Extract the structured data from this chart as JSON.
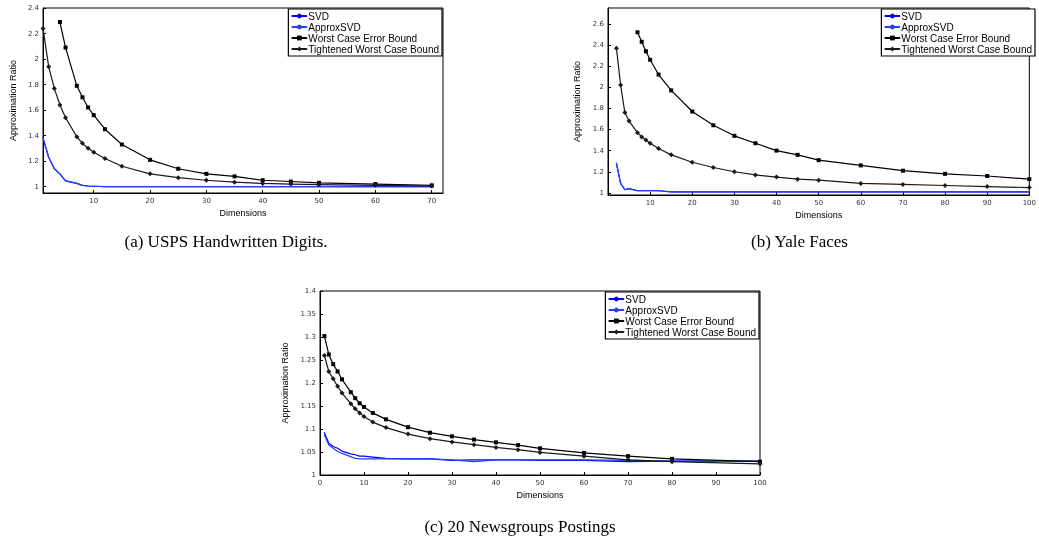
{
  "chart_data": [
    {
      "type": "line",
      "title": "(a) USPS Handwritten Digits.",
      "xlabel": "Dimensions",
      "ylabel": "Approximation Ratio",
      "xlim": [
        1,
        72
      ],
      "xticks": [
        10,
        20,
        30,
        40,
        50,
        60,
        70
      ],
      "ylim": [
        0.95,
        2.4
      ],
      "yticks": [
        1,
        1.2,
        1.4,
        1.6,
        1.8,
        2,
        2.2,
        2.4
      ],
      "legend": "top right",
      "grid": false,
      "series": [
        {
          "name": "SVD",
          "color": "#0000ff",
          "x": [
            1,
            2,
            3,
            4,
            5,
            7,
            8,
            9,
            10,
            12,
            15,
            20,
            25,
            30,
            35,
            40,
            45,
            50,
            60,
            70
          ],
          "values": [
            1.38,
            1.23,
            1.14,
            1.1,
            1.045,
            1.025,
            1.01,
            1.005,
            1.003,
            1.0,
            1.0,
            1.0,
            1.0,
            1.0,
            1.0,
            1.0,
            1.0,
            1.0,
            1.0,
            1.0
          ]
        },
        {
          "name": "ApproxSVD",
          "color": "#2040ff",
          "x": [
            1,
            2,
            3,
            4,
            5,
            7,
            8,
            9,
            10,
            12,
            15,
            20,
            25,
            30,
            35,
            40,
            45,
            50,
            60,
            70
          ],
          "values": [
            1.38,
            1.23,
            1.14,
            1.1,
            1.045,
            1.025,
            1.01,
            1.005,
            1.003,
            1.0,
            1.0,
            1.0,
            1.0,
            1.0,
            1.0,
            1.0,
            1.0,
            1.0,
            1.0,
            1.0
          ]
        },
        {
          "name": "Worst Case Error Bound",
          "color": "#000000",
          "marker": "square",
          "x": [
            4,
            5,
            7,
            8,
            9,
            10,
            12,
            15,
            20,
            25,
            30,
            35,
            40,
            45,
            50,
            60,
            70
          ],
          "values": [
            2.29,
            2.09,
            1.79,
            1.7,
            1.62,
            1.56,
            1.45,
            1.33,
            1.21,
            1.14,
            1.1,
            1.08,
            1.05,
            1.04,
            1.03,
            1.02,
            1.01
          ]
        },
        {
          "name": "Tightened Worst Case Bound",
          "color": "#1a1a1a",
          "marker": "diamond",
          "x": [
            1,
            2,
            3,
            4,
            5,
            7,
            8,
            9,
            10,
            12,
            15,
            20,
            25,
            30,
            35,
            40,
            45,
            50,
            60,
            70
          ],
          "values": [
            2.24,
            1.94,
            1.77,
            1.64,
            1.54,
            1.39,
            1.34,
            1.3,
            1.27,
            1.22,
            1.16,
            1.1,
            1.07,
            1.05,
            1.035,
            1.025,
            1.02,
            1.015,
            1.01,
            1.005
          ]
        }
      ]
    },
    {
      "type": "line",
      "title": "(b) Yale Faces",
      "xlabel": "Dimensions",
      "ylabel": "Approximation Ratio",
      "xlim": [
        0,
        100
      ],
      "xticks": [
        10,
        20,
        30,
        40,
        50,
        60,
        70,
        80,
        90,
        100
      ],
      "ylim": [
        0.98,
        2.75
      ],
      "yticks": [
        1,
        1.2,
        1.4,
        1.6,
        1.8,
        2,
        2.2,
        2.4,
        2.6
      ],
      "legend": "top right",
      "grid": false,
      "series": [
        {
          "name": "SVD",
          "color": "#0000ff",
          "x": [
            2,
            3,
            4,
            5,
            7,
            8,
            9,
            10,
            12,
            15,
            20,
            25,
            30,
            35,
            40,
            45,
            50,
            60,
            70,
            80,
            90,
            100
          ],
          "values": [
            1.28,
            1.09,
            1.03,
            1.04,
            1.02,
            1.02,
            1.02,
            1.02,
            1.02,
            1.01,
            1.01,
            1.01,
            1.01,
            1.01,
            1.01,
            1.01,
            1.01,
            1.01,
            1.01,
            1.01,
            1.01,
            1.01
          ]
        },
        {
          "name": "ApproxSVD",
          "color": "#2040ff",
          "x": [
            2,
            3,
            4,
            5,
            7,
            8,
            9,
            10,
            12,
            15,
            20,
            25,
            30,
            35,
            40,
            45,
            50,
            60,
            70,
            80,
            90,
            100
          ],
          "values": [
            1.28,
            1.09,
            1.03,
            1.04,
            1.02,
            1.02,
            1.02,
            1.02,
            1.02,
            1.01,
            1.01,
            1.01,
            1.01,
            1.01,
            1.01,
            1.01,
            1.01,
            1.01,
            1.01,
            1.01,
            1.01,
            1.01
          ]
        },
        {
          "name": "Worst Case Error Bound",
          "color": "#000000",
          "marker": "square",
          "x": [
            7,
            8,
            9,
            10,
            12,
            15,
            20,
            25,
            30,
            35,
            40,
            45,
            50,
            60,
            70,
            80,
            90,
            100
          ],
          "values": [
            2.52,
            2.43,
            2.34,
            2.26,
            2.12,
            1.97,
            1.77,
            1.64,
            1.54,
            1.47,
            1.4,
            1.36,
            1.31,
            1.26,
            1.21,
            1.18,
            1.16,
            1.13
          ]
        },
        {
          "name": "Tightened Worst Case Bound",
          "color": "#1a1a1a",
          "marker": "diamond",
          "x": [
            2,
            3,
            4,
            5,
            7,
            8,
            9,
            10,
            12,
            15,
            20,
            25,
            30,
            35,
            40,
            45,
            50,
            60,
            70,
            80,
            90,
            100
          ],
          "values": [
            2.37,
            2.02,
            1.76,
            1.68,
            1.57,
            1.53,
            1.5,
            1.47,
            1.42,
            1.36,
            1.29,
            1.24,
            1.2,
            1.17,
            1.15,
            1.13,
            1.12,
            1.09,
            1.08,
            1.07,
            1.06,
            1.05
          ]
        }
      ]
    },
    {
      "type": "line",
      "title": "(c) 20 Newsgroups Postings",
      "xlabel": "Dimensions",
      "ylabel": "Approximation Ratio",
      "xlim": [
        0,
        100
      ],
      "xticks": [
        0,
        10,
        20,
        30,
        40,
        50,
        60,
        70,
        80,
        90,
        100
      ],
      "ylim": [
        1,
        1.4
      ],
      "yticks": [
        1,
        1.05,
        1.1,
        1.15,
        1.2,
        1.25,
        1.3,
        1.35,
        1.4
      ],
      "legend": "top right",
      "grid": false,
      "series": [
        {
          "name": "SVD",
          "color": "#0000ff",
          "x": [
            1,
            2,
            3,
            4,
            5,
            7,
            8,
            9,
            10,
            12,
            15,
            20,
            25,
            30,
            35,
            40,
            45,
            50,
            60,
            70,
            80,
            100
          ],
          "values": [
            1.092,
            1.069,
            1.062,
            1.058,
            1.052,
            1.046,
            1.044,
            1.041,
            1.041,
            1.039,
            1.036,
            1.035,
            1.035,
            1.032,
            1.033,
            1.033,
            1.033,
            1.032,
            1.032,
            1.029,
            1.03,
            1.03
          ]
        },
        {
          "name": "ApproxSVD",
          "color": "#2040ff",
          "x": [
            1,
            2,
            3,
            4,
            5,
            7,
            8,
            9,
            10,
            12,
            15,
            20,
            25,
            30,
            35,
            40,
            45,
            50,
            60,
            70,
            80,
            100
          ],
          "values": [
            1.087,
            1.065,
            1.058,
            1.051,
            1.047,
            1.04,
            1.036,
            1.035,
            1.035,
            1.035,
            1.035,
            1.035,
            1.035,
            1.033,
            1.029,
            1.033,
            1.033,
            1.033,
            1.033,
            1.032,
            1.03,
            1.03
          ]
        },
        {
          "name": "Worst Case Error Bound",
          "color": "#000000",
          "marker": "square",
          "x": [
            1,
            2,
            3,
            4,
            5,
            7,
            8,
            9,
            10,
            12,
            15,
            20,
            25,
            30,
            35,
            40,
            45,
            50,
            60,
            70,
            80,
            100
          ],
          "values": [
            1.302,
            1.262,
            1.241,
            1.225,
            1.208,
            1.18,
            1.167,
            1.156,
            1.148,
            1.135,
            1.121,
            1.104,
            1.092,
            1.084,
            1.077,
            1.071,
            1.065,
            1.058,
            1.048,
            1.041,
            1.035,
            1.029
          ]
        },
        {
          "name": "Tightened Worst Case Bound",
          "color": "#1a1a1a",
          "marker": "diamond",
          "x": [
            1,
            2,
            3,
            4,
            5,
            7,
            8,
            9,
            10,
            12,
            15,
            20,
            25,
            30,
            35,
            40,
            45,
            50,
            60,
            70,
            80,
            100
          ],
          "values": [
            1.26,
            1.225,
            1.209,
            1.193,
            1.178,
            1.155,
            1.144,
            1.135,
            1.127,
            1.115,
            1.103,
            1.089,
            1.079,
            1.072,
            1.066,
            1.06,
            1.055,
            1.049,
            1.041,
            1.033,
            1.029,
            1.024
          ]
        }
      ]
    }
  ]
}
